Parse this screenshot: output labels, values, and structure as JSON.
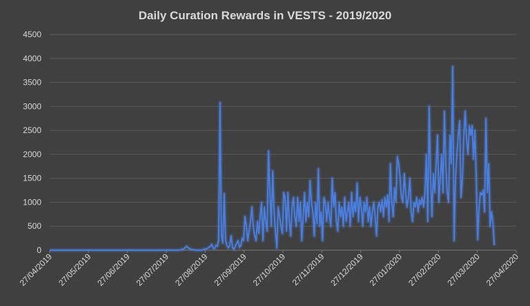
{
  "chart_data": {
    "type": "line",
    "title": "Daily Curation Rewards in VESTS - 2019/2020",
    "xlabel": "",
    "ylabel": "",
    "ylim": [
      0,
      4500
    ],
    "yticks": [
      0,
      500,
      1000,
      1500,
      2000,
      2500,
      3000,
      3500,
      4000,
      4500
    ],
    "xticks": [
      "27/04/2019",
      "27/05/2019",
      "27/06/2019",
      "27/07/2019",
      "27/08/2019",
      "27/09/2019",
      "27/10/2019",
      "27/11/2019",
      "27/12/2019",
      "27/01/2020",
      "27/02/2020",
      "27/03/2020",
      "27/04/2020"
    ],
    "grid": true,
    "legend": "none",
    "series_color": "#4a7fe0",
    "series": [
      {
        "values": [
          0,
          0,
          0,
          0,
          0,
          0,
          0,
          0,
          0,
          0,
          0,
          0,
          0,
          0,
          0,
          0,
          0,
          0,
          0,
          0,
          0,
          0,
          0,
          0,
          0,
          0,
          0,
          0,
          0,
          0,
          0,
          0,
          0,
          0,
          0,
          0,
          0,
          0,
          0,
          0,
          0,
          0,
          0,
          0,
          0,
          0,
          0,
          0,
          0,
          0,
          0,
          0,
          0,
          0,
          0,
          0,
          0,
          0,
          0,
          0,
          0,
          0,
          0,
          0,
          0,
          0,
          0,
          0,
          0,
          0,
          0,
          0,
          0,
          0,
          0,
          0,
          0,
          0,
          0,
          0,
          0,
          0,
          0,
          0,
          0,
          0,
          0,
          0,
          0,
          0,
          0,
          0,
          0,
          0,
          5,
          10,
          20,
          30,
          60,
          80,
          50,
          30,
          20,
          10,
          5,
          0,
          0,
          0,
          0,
          0,
          5,
          10,
          20,
          30,
          40,
          60,
          80,
          120,
          40,
          30,
          100,
          80,
          200,
          3080,
          300,
          150,
          1180,
          200,
          100,
          50,
          100,
          300,
          50,
          20,
          80,
          150,
          200,
          60,
          100,
          250,
          200,
          700,
          500,
          200,
          400,
          600,
          900,
          500,
          300,
          200,
          600,
          350,
          700,
          1000,
          200,
          900,
          600,
          400,
          2070,
          1200,
          500,
          1650,
          800,
          400,
          50,
          900,
          700,
          500,
          350,
          1200,
          1100,
          400,
          1200,
          600,
          300,
          900,
          1100,
          700,
          500,
          1100,
          600,
          1000,
          200,
          700,
          1200,
          600,
          1000,
          700,
          1450,
          1000,
          800,
          300,
          1000,
          550,
          1700,
          500,
          800,
          200,
          1100,
          1000,
          600,
          1000,
          700,
          500,
          1500,
          900,
          1200,
          600,
          400,
          1000,
          700,
          900,
          500,
          1100,
          600,
          800,
          1000,
          500,
          1200,
          700,
          1000,
          800,
          1400,
          600,
          1100,
          900,
          500,
          1000,
          800,
          1100,
          600,
          900,
          500,
          800,
          1000,
          700,
          300,
          900,
          1000,
          800,
          1050,
          700,
          1100,
          900,
          1150,
          600,
          1800,
          1000,
          700,
          1300,
          1000,
          1950,
          1800,
          1500,
          1100,
          1000,
          1600,
          1200,
          900,
          1100,
          1500,
          800,
          600,
          1000,
          900,
          1100,
          800,
          1050,
          950,
          1100,
          900,
          1200,
          2000,
          600,
          3000,
          1500,
          700,
          1600,
          1200,
          1800,
          2400,
          1000,
          1500,
          2000,
          1200,
          2900,
          1800,
          1200,
          1000,
          2400,
          1800,
          3830,
          200,
          1500,
          2000,
          2400,
          2700,
          1100,
          1500,
          2400,
          2900,
          2300,
          2000,
          2600,
          2400,
          2600,
          1900,
          2500,
          1500,
          220,
          900,
          1200,
          1150,
          1250,
          800,
          2750,
          1200,
          1800,
          500,
          800,
          600,
          100
        ]
      }
    ]
  }
}
